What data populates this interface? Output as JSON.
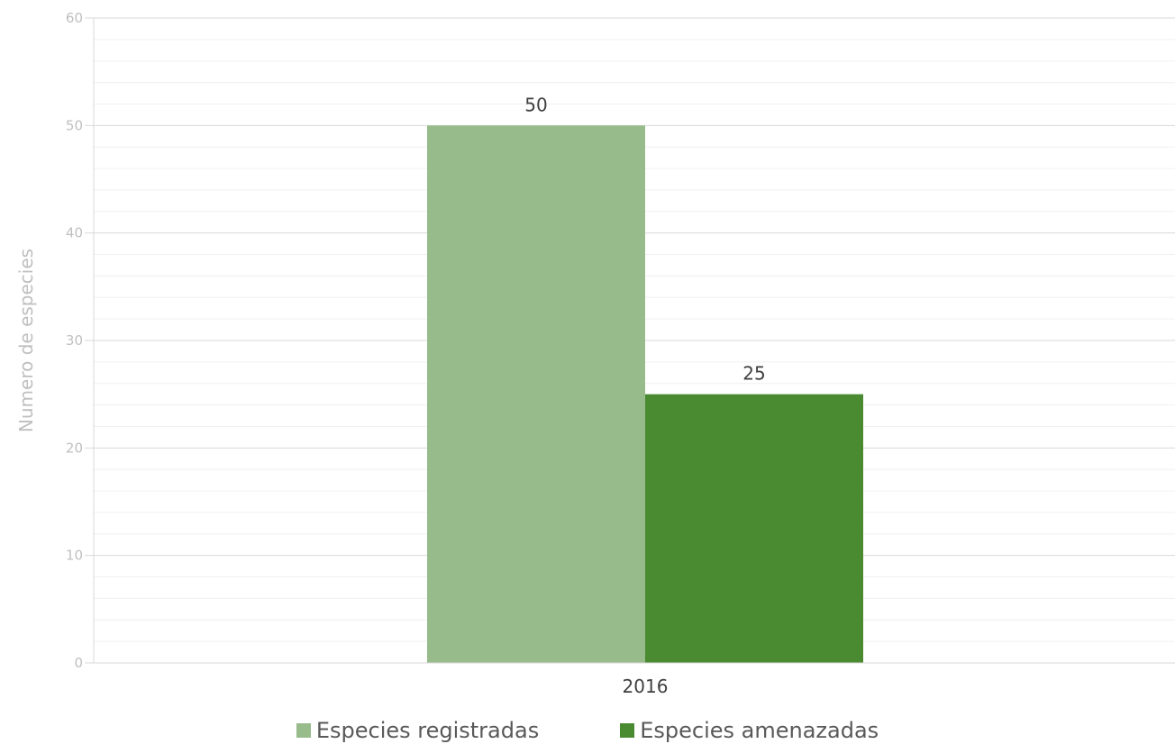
{
  "chart_data": {
    "type": "bar",
    "categories": [
      "2016"
    ],
    "series": [
      {
        "name": "Especies registradas",
        "values": [
          50
        ],
        "color": "#97bb8b"
      },
      {
        "name": "Especies amenazadas",
        "values": [
          25
        ],
        "color": "#4a8a31"
      }
    ],
    "ylabel": "Numero de especies",
    "xlabel": "",
    "ylim": [
      0,
      60
    ],
    "yticks": [
      0,
      10,
      20,
      30,
      40,
      50,
      60
    ],
    "minor_gridlines": true,
    "legend_position": "bottom",
    "data_labels": [
      "50",
      "25"
    ]
  }
}
